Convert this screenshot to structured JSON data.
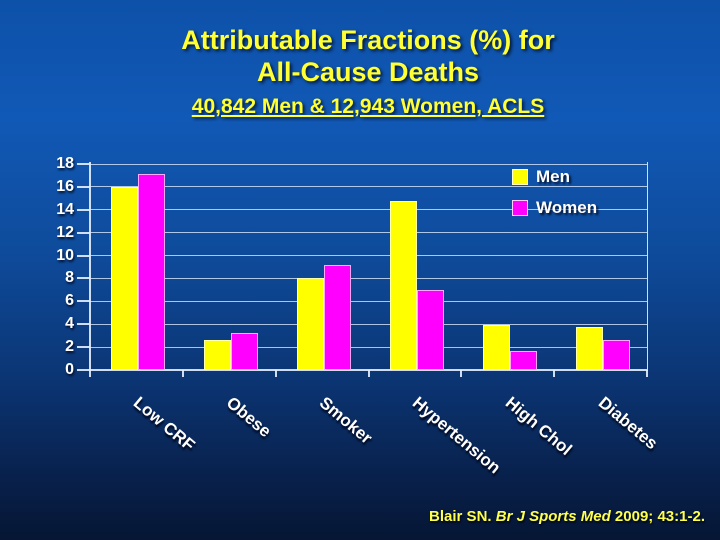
{
  "title": {
    "line1": "Attributable Fractions (%) for",
    "line2": "All-Cause Deaths"
  },
  "subtitle": "40,842 Men & 12,943 Women, ACLS",
  "citation": {
    "prefix": "Blair SN. ",
    "journal": "Br J Sports Med",
    "suffix": " 2009; 43:1-2."
  },
  "colors": {
    "title_text": "#ffff33",
    "axis_text": "#ffffff",
    "gridline": "#dceafc",
    "men_bar": "#ffff00",
    "women_bar": "#ff00ff",
    "background_top": "#1159b6",
    "background_bottom": "#061634"
  },
  "chart_data": {
    "type": "bar",
    "categories": [
      "Low CRF",
      "Obese",
      "Smoker",
      "Hypertension",
      "High Chol",
      "Diabetes"
    ],
    "series": [
      {
        "name": "Men",
        "color": "#ffff00",
        "values": [
          16.0,
          2.6,
          8.0,
          14.8,
          3.9,
          3.8
        ]
      },
      {
        "name": "Women",
        "color": "#ff00ff",
        "values": [
          17.1,
          3.2,
          9.2,
          7.0,
          1.7,
          2.6
        ]
      }
    ],
    "ylabel": "",
    "xlabel": "",
    "ylim": [
      0,
      18
    ],
    "ytick_step": 2,
    "grid": true,
    "legend_position": "top-right"
  }
}
